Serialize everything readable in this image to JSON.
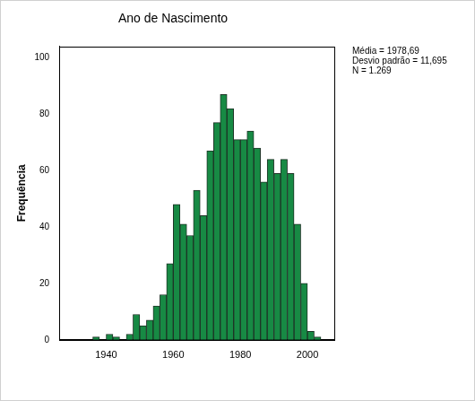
{
  "chart_data": {
    "type": "histogram",
    "title": "Ano de Nascimento",
    "y_label": "Frequência",
    "annotations": [
      "Média = 1978,69",
      "Desvio padrão = 11,695",
      "N = 1.269"
    ],
    "bins": [
      1936,
      1938,
      1940,
      1942,
      1944,
      1946,
      1948,
      1950,
      1952,
      1954,
      1956,
      1958,
      1960,
      1962,
      1964,
      1966,
      1968,
      1970,
      1972,
      1974,
      1976,
      1978,
      1980,
      1982,
      1984,
      1986,
      1988,
      1990,
      1992,
      1994,
      1996,
      1998,
      2000,
      2002,
      2004
    ],
    "counts": [
      1,
      0,
      2,
      1,
      0,
      2,
      9,
      5,
      7,
      12,
      16,
      27,
      48,
      41,
      37,
      53,
      44,
      67,
      77,
      87,
      82,
      71,
      71,
      74,
      68,
      56,
      64,
      59,
      64,
      59,
      41,
      20,
      3,
      1
    ],
    "color": "#178a44",
    "xlim": [
      1926,
      2008
    ],
    "ylim": [
      0,
      104
    ],
    "xticks": [
      1940,
      1960,
      1980,
      2000
    ],
    "yticks": [
      0,
      20,
      40,
      60,
      80,
      100
    ],
    "grid": false
  }
}
